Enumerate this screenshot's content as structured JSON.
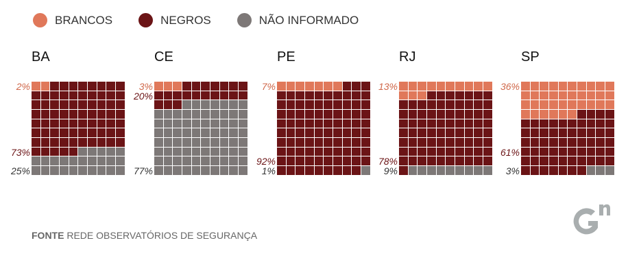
{
  "chart_data": {
    "type": "waffle",
    "legend": [
      {
        "label": "BRANCOS",
        "color": "#e0785a"
      },
      {
        "label": "NEGROS",
        "color": "#6b1416"
      },
      {
        "label": "NÃO INFORMADO",
        "color": "#7d7877"
      }
    ],
    "categories": [
      "BA",
      "CE",
      "PE",
      "RJ",
      "SP"
    ],
    "series": [
      {
        "name": "BRANCOS",
        "values": [
          2,
          3,
          7,
          13,
          36
        ]
      },
      {
        "name": "NEGROS",
        "values": [
          73,
          20,
          92,
          78,
          61
        ]
      },
      {
        "name": "NÃO INFORMADO",
        "values": [
          25,
          77,
          1,
          9,
          3
        ]
      }
    ],
    "unit": "%"
  },
  "footer": {
    "source_label": "FONTE",
    "source_text": " REDE OBSERVATÓRIOS DE SEGURANÇA"
  },
  "logo": {
    "text": "G1"
  }
}
